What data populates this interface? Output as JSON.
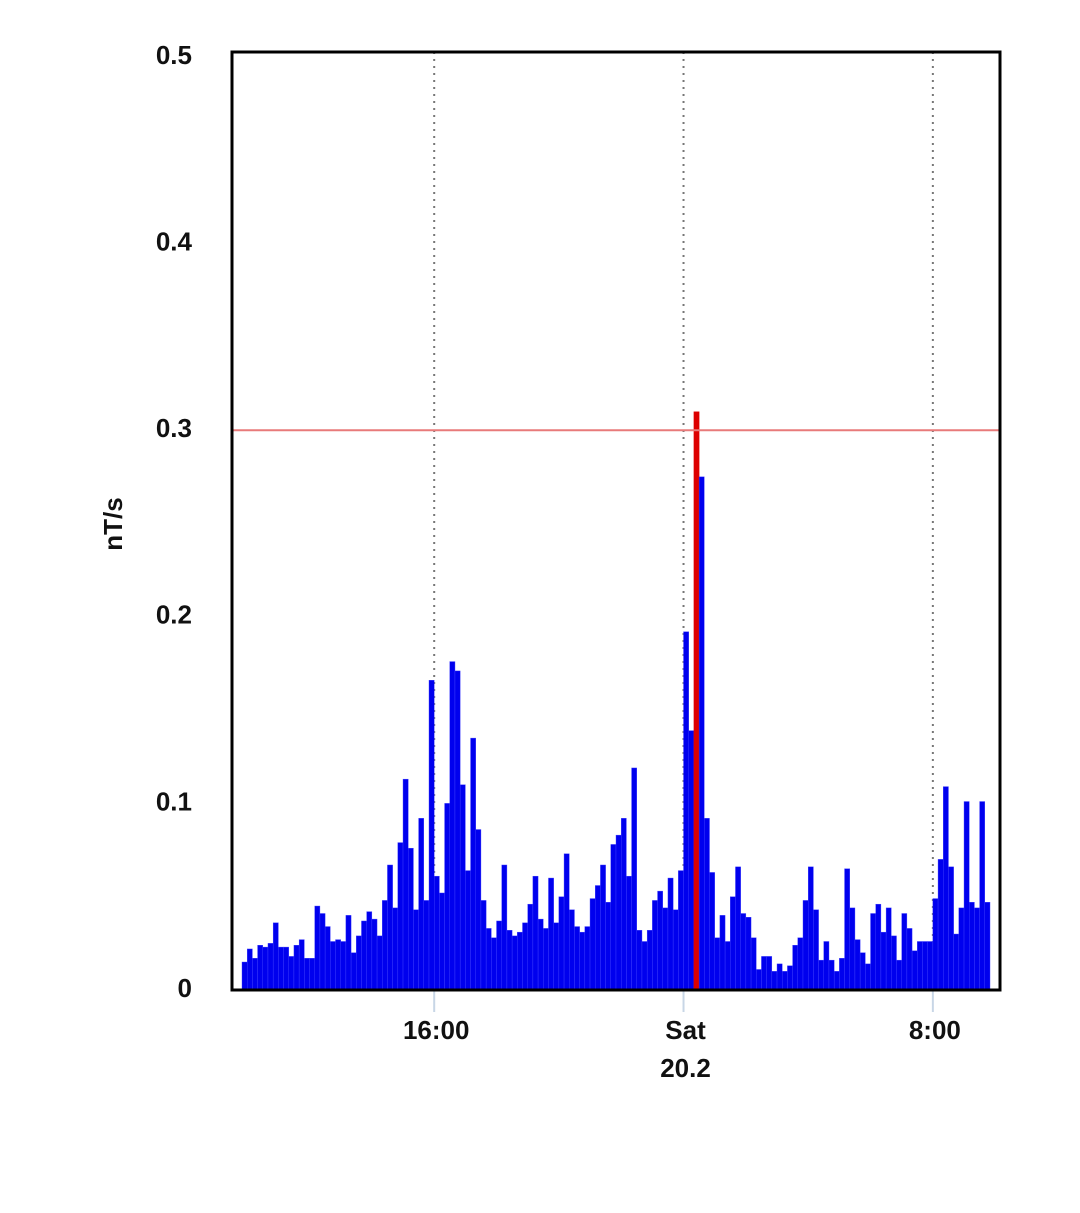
{
  "chart_data": {
    "type": "bar",
    "y_label": "nT/s",
    "categories": [
      null,
      null,
      null,
      null,
      null,
      null,
      null,
      null,
      null,
      null,
      null,
      null,
      null,
      null,
      null,
      null,
      null,
      null,
      null,
      null,
      null,
      null,
      null,
      null,
      null,
      null,
      null,
      null,
      null,
      null,
      null,
      null,
      null,
      null,
      null,
      null,
      null,
      "16:00",
      null,
      null,
      null,
      null,
      null,
      null,
      null,
      null,
      null,
      null,
      null,
      null,
      null,
      null,
      null,
      null,
      null,
      null,
      null,
      null,
      null,
      null,
      null,
      null,
      null,
      null,
      null,
      null,
      null,
      null,
      null,
      null,
      null,
      null,
      null,
      null,
      null,
      null,
      null,
      null,
      null,
      null,
      null,
      null,
      null,
      null,
      null,
      "Sat",
      null,
      null,
      null,
      null,
      null,
      null,
      null,
      null,
      null,
      null,
      null,
      null,
      null,
      null,
      null,
      null,
      null,
      null,
      null,
      null,
      null,
      null,
      null,
      null,
      null,
      null,
      null,
      null,
      null,
      null,
      null,
      null,
      null,
      null,
      null,
      null,
      null,
      null,
      null,
      null,
      null,
      null,
      null,
      null,
      null,
      null,
      null,
      "8:00",
      null,
      null,
      null,
      null,
      null,
      null,
      null,
      null,
      null,
      null
    ],
    "date_label": "20.2",
    "values": [
      0.015,
      0.022,
      0.017,
      0.024,
      0.023,
      0.025,
      0.036,
      0.023,
      0.023,
      0.018,
      0.024,
      0.027,
      0.017,
      0.017,
      0.045,
      0.041,
      0.034,
      0.026,
      0.027,
      0.026,
      0.04,
      0.02,
      0.029,
      0.037,
      0.042,
      0.038,
      0.029,
      0.048,
      0.067,
      0.044,
      0.079,
      0.113,
      0.076,
      0.043,
      0.092,
      0.048,
      0.166,
      0.061,
      0.052,
      0.1,
      0.176,
      0.171,
      0.11,
      0.064,
      0.135,
      0.086,
      0.048,
      0.033,
      0.028,
      0.037,
      0.067,
      0.032,
      0.029,
      0.031,
      0.036,
      0.046,
      0.061,
      0.038,
      0.033,
      0.06,
      0.036,
      0.05,
      0.073,
      0.043,
      0.034,
      0.031,
      0.034,
      0.049,
      0.056,
      0.067,
      0.047,
      0.078,
      0.083,
      0.092,
      0.061,
      0.119,
      0.032,
      0.026,
      0.032,
      0.048,
      0.053,
      0.044,
      0.06,
      0.043,
      0.064,
      0.192,
      0.139,
      0.31,
      0.275,
      0.092,
      0.063,
      0.028,
      0.04,
      0.026,
      0.05,
      0.066,
      0.041,
      0.039,
      0.028,
      0.011,
      0.018,
      0.018,
      0.01,
      0.014,
      0.01,
      0.013,
      0.024,
      0.028,
      0.048,
      0.066,
      0.043,
      0.016,
      0.026,
      0.016,
      0.01,
      0.017,
      0.065,
      0.044,
      0.027,
      0.02,
      0.014,
      0.041,
      0.046,
      0.031,
      0.044,
      0.029,
      0.016,
      0.041,
      0.033,
      0.021,
      0.026,
      0.026,
      0.026,
      0.049,
      0.07,
      0.109,
      0.066,
      0.03,
      0.044,
      0.101,
      0.047,
      0.044,
      0.101,
      0.047
    ],
    "color": "#0000ee",
    "threshold": 0.3,
    "threshold_color": "#e87a7a",
    "highlight_color": "#dd0000",
    "ylim": [
      0,
      0.5
    ],
    "yticks": [
      0,
      0.1,
      0.2,
      0.3,
      0.4,
      0.5
    ],
    "grid": true
  }
}
